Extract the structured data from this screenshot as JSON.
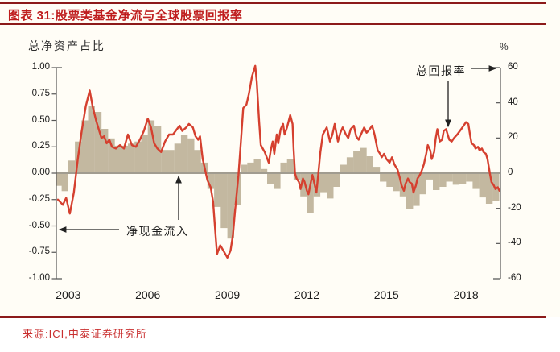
{
  "figure": {
    "title": "图表 31:股票类基金净流与全球股票回报率",
    "source": "来源:ICI,中泰证券研究所"
  },
  "colors": {
    "rule": "#8c1a1a",
    "title_text": "#bf1d1d",
    "source_text": "#c92f2f",
    "bar": "#c3b8a0",
    "line": "#d5402f",
    "zero_line": "#a19c90",
    "axis": "#555555",
    "background": "#fffdf6"
  },
  "chart_data": {
    "type": "bar+line",
    "title": "股票类基金净流与全球股票回报率",
    "grid": false,
    "legend_position": "annotations-with-arrows",
    "left_axis": {
      "title": "总净资产占比",
      "range": [
        -1.0,
        1.0
      ],
      "ticks": [
        {
          "label": "1.00",
          "v": 1.0
        },
        {
          "label": "0.75",
          "v": 0.75
        },
        {
          "label": "0.50",
          "v": 0.5
        },
        {
          "label": "0.25",
          "v": 0.25
        },
        {
          "label": "0.00",
          "v": 0.0
        },
        {
          "label": "-0.25",
          "v": -0.25
        },
        {
          "label": "-0.50",
          "v": -0.5
        },
        {
          "label": "-0.75",
          "v": -0.75
        },
        {
          "label": "-1.00",
          "v": -1.0
        }
      ]
    },
    "right_axis": {
      "unit": "%",
      "range": [
        -60,
        60
      ],
      "ticks": [
        {
          "label": "60",
          "v": 60
        },
        {
          "label": "40",
          "v": 40
        },
        {
          "label": "20",
          "v": 20
        },
        {
          "label": "0",
          "v": 0
        },
        {
          "label": "-20",
          "v": -20
        },
        {
          "label": "-40",
          "v": -40
        },
        {
          "label": "-60",
          "v": -60
        }
      ]
    },
    "x_axis": {
      "range": [
        2002.55,
        2019.3
      ],
      "ticks": [
        {
          "label": "2003",
          "v": 2003
        },
        {
          "label": "2006",
          "v": 2006
        },
        {
          "label": "2009",
          "v": 2009
        },
        {
          "label": "2012",
          "v": 2012
        },
        {
          "label": "2015",
          "v": 2015
        },
        {
          "label": "2018",
          "v": 2018
        }
      ]
    },
    "annotations": [
      {
        "label": "总回报率",
        "target": "line-series-right-axis"
      },
      {
        "label": "净现金流入",
        "target": "bar-series-left-axis"
      }
    ],
    "series": [
      {
        "name": "净现金流入",
        "type": "bar",
        "axis": "left",
        "color": "#c3b8a0",
        "points": [
          [
            2002.55,
            -0.12
          ],
          [
            2002.75,
            -0.17
          ],
          [
            2003.0,
            0.12
          ],
          [
            2003.25,
            0.3
          ],
          [
            2003.5,
            0.5
          ],
          [
            2003.75,
            0.64
          ],
          [
            2004.0,
            0.58
          ],
          [
            2004.25,
            0.42
          ],
          [
            2004.5,
            0.33
          ],
          [
            2004.75,
            0.26
          ],
          [
            2005.0,
            0.26
          ],
          [
            2005.25,
            0.28
          ],
          [
            2005.5,
            0.3
          ],
          [
            2005.75,
            0.36
          ],
          [
            2006.0,
            0.5
          ],
          [
            2006.25,
            0.45
          ],
          [
            2006.5,
            0.22
          ],
          [
            2006.75,
            0.22
          ],
          [
            2007.0,
            0.28
          ],
          [
            2007.25,
            0.36
          ],
          [
            2007.5,
            0.33
          ],
          [
            2007.75,
            0.22
          ],
          [
            2008.0,
            0.1
          ],
          [
            2008.25,
            -0.15
          ],
          [
            2008.5,
            -0.32
          ],
          [
            2008.75,
            -0.52
          ],
          [
            2009.0,
            -0.62
          ],
          [
            2009.25,
            -0.3
          ],
          [
            2009.5,
            0.08
          ],
          [
            2009.75,
            0.1
          ],
          [
            2010.0,
            0.13
          ],
          [
            2010.25,
            0.04
          ],
          [
            2010.5,
            -0.1
          ],
          [
            2010.75,
            -0.15
          ],
          [
            2011.0,
            0.1
          ],
          [
            2011.25,
            0.13
          ],
          [
            2011.5,
            -0.06
          ],
          [
            2011.75,
            -0.22
          ],
          [
            2012.0,
            -0.38
          ],
          [
            2012.25,
            -0.22
          ],
          [
            2012.5,
            -0.18
          ],
          [
            2012.75,
            -0.24
          ],
          [
            2013.0,
            -0.13
          ],
          [
            2013.25,
            0.08
          ],
          [
            2013.5,
            0.15
          ],
          [
            2013.75,
            0.21
          ],
          [
            2014.0,
            0.24
          ],
          [
            2014.25,
            0.16
          ],
          [
            2014.5,
            0.06
          ],
          [
            2014.75,
            -0.08
          ],
          [
            2015.0,
            -0.13
          ],
          [
            2015.25,
            -0.17
          ],
          [
            2015.5,
            -0.22
          ],
          [
            2015.75,
            -0.34
          ],
          [
            2016.0,
            -0.31
          ],
          [
            2016.25,
            -0.2
          ],
          [
            2016.5,
            -0.06
          ],
          [
            2016.75,
            -0.16
          ],
          [
            2017.0,
            -0.13
          ],
          [
            2017.25,
            -0.08
          ],
          [
            2017.5,
            -0.11
          ],
          [
            2017.75,
            -0.1
          ],
          [
            2018.0,
            -0.08
          ],
          [
            2018.25,
            -0.15
          ],
          [
            2018.5,
            -0.23
          ],
          [
            2018.75,
            -0.29
          ],
          [
            2019.0,
            -0.26
          ]
        ]
      },
      {
        "name": "总回报率",
        "type": "line",
        "axis": "right",
        "color": "#d5402f",
        "points": [
          [
            2002.61,
            -15
          ],
          [
            2002.8,
            -18
          ],
          [
            2002.92,
            -14
          ],
          [
            2003.06,
            -23
          ],
          [
            2003.21,
            -11
          ],
          [
            2003.36,
            8
          ],
          [
            2003.51,
            24
          ],
          [
            2003.66,
            38
          ],
          [
            2003.81,
            47
          ],
          [
            2003.92,
            38
          ],
          [
            2004.05,
            30
          ],
          [
            2004.15,
            25
          ],
          [
            2004.25,
            20
          ],
          [
            2004.35,
            21
          ],
          [
            2004.45,
            17
          ],
          [
            2004.55,
            19
          ],
          [
            2004.65,
            15
          ],
          [
            2004.8,
            14
          ],
          [
            2004.95,
            16
          ],
          [
            2005.1,
            14
          ],
          [
            2005.25,
            22
          ],
          [
            2005.4,
            16
          ],
          [
            2005.55,
            15
          ],
          [
            2005.7,
            19
          ],
          [
            2005.85,
            24
          ],
          [
            2006.0,
            31
          ],
          [
            2006.12,
            26
          ],
          [
            2006.24,
            17
          ],
          [
            2006.36,
            14
          ],
          [
            2006.5,
            12
          ],
          [
            2006.65,
            18
          ],
          [
            2006.8,
            22
          ],
          [
            2006.95,
            22
          ],
          [
            2007.1,
            25
          ],
          [
            2007.2,
            27
          ],
          [
            2007.3,
            24
          ],
          [
            2007.45,
            26
          ],
          [
            2007.55,
            28
          ],
          [
            2007.7,
            26
          ],
          [
            2007.8,
            21
          ],
          [
            2007.9,
            19
          ],
          [
            2007.97,
            21
          ],
          [
            2008.07,
            8
          ],
          [
            2008.16,
            2
          ],
          [
            2008.25,
            -4
          ],
          [
            2008.37,
            -8
          ],
          [
            2008.46,
            -16
          ],
          [
            2008.55,
            -34
          ],
          [
            2008.61,
            -46
          ],
          [
            2008.73,
            -41
          ],
          [
            2008.85,
            -44
          ],
          [
            2009.0,
            -48
          ],
          [
            2009.12,
            -44
          ],
          [
            2009.21,
            -35
          ],
          [
            2009.3,
            -20
          ],
          [
            2009.42,
            -1
          ],
          [
            2009.51,
            18
          ],
          [
            2009.6,
            37
          ],
          [
            2009.72,
            39
          ],
          [
            2009.81,
            45
          ],
          [
            2009.93,
            55
          ],
          [
            2010.05,
            61
          ],
          [
            2010.11,
            52
          ],
          [
            2010.2,
            29
          ],
          [
            2010.26,
            16
          ],
          [
            2010.41,
            12
          ],
          [
            2010.56,
            6
          ],
          [
            2010.65,
            14
          ],
          [
            2010.71,
            18
          ],
          [
            2010.77,
            11
          ],
          [
            2010.86,
            22
          ],
          [
            2010.92,
            17
          ],
          [
            2011.01,
            25
          ],
          [
            2011.1,
            28
          ],
          [
            2011.16,
            22
          ],
          [
            2011.25,
            26
          ],
          [
            2011.37,
            33
          ],
          [
            2011.46,
            28
          ],
          [
            2011.5,
            14
          ],
          [
            2011.55,
            0
          ],
          [
            2011.61,
            -3
          ],
          [
            2011.7,
            -5
          ],
          [
            2011.76,
            -9
          ],
          [
            2011.85,
            -3
          ],
          [
            2011.91,
            -5
          ],
          [
            2012.0,
            -10
          ],
          [
            2012.06,
            -12
          ],
          [
            2012.15,
            -5
          ],
          [
            2012.21,
            -1
          ],
          [
            2012.3,
            -7
          ],
          [
            2012.36,
            -11
          ],
          [
            2012.45,
            3
          ],
          [
            2012.51,
            12
          ],
          [
            2012.6,
            22
          ],
          [
            2012.75,
            26
          ],
          [
            2012.87,
            18
          ],
          [
            2012.96,
            22
          ],
          [
            2013.05,
            28
          ],
          [
            2013.17,
            18
          ],
          [
            2013.26,
            23
          ],
          [
            2013.35,
            26
          ],
          [
            2013.47,
            22
          ],
          [
            2013.56,
            20
          ],
          [
            2013.65,
            25
          ],
          [
            2013.77,
            27
          ],
          [
            2013.86,
            21
          ],
          [
            2013.95,
            19
          ],
          [
            2014.07,
            23
          ],
          [
            2014.16,
            26
          ],
          [
            2014.25,
            23
          ],
          [
            2014.37,
            25
          ],
          [
            2014.46,
            27
          ],
          [
            2014.55,
            22
          ],
          [
            2014.67,
            13
          ],
          [
            2014.76,
            11
          ],
          [
            2014.82,
            9
          ],
          [
            2014.91,
            11
          ],
          [
            2015.0,
            8
          ],
          [
            2015.12,
            6
          ],
          [
            2015.21,
            9
          ],
          [
            2015.3,
            5
          ],
          [
            2015.42,
            2
          ],
          [
            2015.51,
            -3
          ],
          [
            2015.57,
            -7
          ],
          [
            2015.66,
            -10
          ],
          [
            2015.72,
            -6
          ],
          [
            2015.81,
            -3
          ],
          [
            2015.87,
            -5
          ],
          [
            2015.96,
            -6
          ],
          [
            2016.02,
            -11
          ],
          [
            2016.11,
            -7
          ],
          [
            2016.17,
            -3
          ],
          [
            2016.26,
            -1
          ],
          [
            2016.32,
            1
          ],
          [
            2016.41,
            5
          ],
          [
            2016.5,
            11
          ],
          [
            2016.56,
            16
          ],
          [
            2016.65,
            13
          ],
          [
            2016.71,
            8
          ],
          [
            2016.8,
            12
          ],
          [
            2016.86,
            20
          ],
          [
            2016.92,
            25
          ],
          [
            2017.01,
            18
          ],
          [
            2017.1,
            19
          ],
          [
            2017.16,
            24
          ],
          [
            2017.25,
            25
          ],
          [
            2017.37,
            19
          ],
          [
            2017.46,
            18
          ],
          [
            2017.55,
            20
          ],
          [
            2017.67,
            22
          ],
          [
            2017.82,
            25
          ],
          [
            2017.91,
            27
          ],
          [
            2018.0,
            29
          ],
          [
            2018.09,
            28
          ],
          [
            2018.15,
            22
          ],
          [
            2018.21,
            17
          ],
          [
            2018.3,
            16
          ],
          [
            2018.36,
            14
          ],
          [
            2018.45,
            15
          ],
          [
            2018.51,
            13
          ],
          [
            2018.6,
            14
          ],
          [
            2018.66,
            12
          ],
          [
            2018.75,
            11
          ],
          [
            2018.81,
            8
          ],
          [
            2018.9,
            0
          ],
          [
            2018.96,
            -5
          ],
          [
            2019.05,
            -7
          ],
          [
            2019.11,
            -9
          ],
          [
            2019.2,
            -8
          ],
          [
            2019.26,
            -10
          ]
        ]
      }
    ]
  }
}
